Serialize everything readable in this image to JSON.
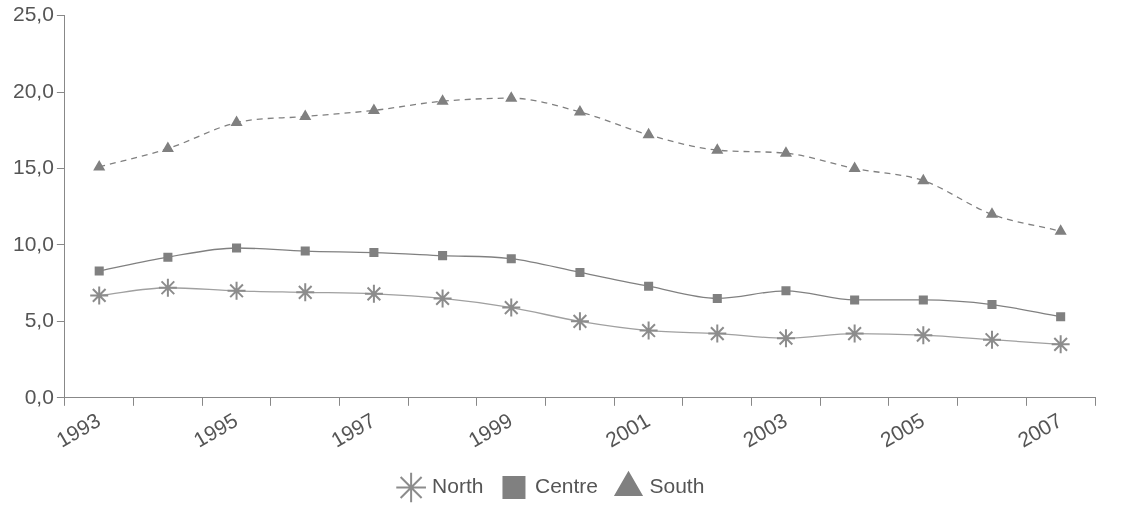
{
  "chart_data": {
    "type": "line",
    "categories": [
      "1993",
      null,
      "1995",
      null,
      "1997",
      null,
      "1999",
      null,
      "2001",
      null,
      "2003",
      null,
      "2005",
      null,
      "2007"
    ],
    "series": [
      {
        "name": "North",
        "color": "#a0a0a0",
        "marker": "cross",
        "line_style": "solid",
        "values": [
          6.7,
          7.2,
          7.0,
          6.9,
          6.8,
          6.5,
          5.9,
          5.0,
          4.4,
          4.2,
          3.9,
          4.2,
          4.1,
          3.8,
          3.5
        ]
      },
      {
        "name": "Centre",
        "color": "#808080",
        "marker": "square",
        "line_style": "solid",
        "values": [
          8.3,
          9.2,
          9.8,
          9.6,
          9.5,
          9.3,
          9.1,
          8.2,
          7.3,
          6.5,
          7.0,
          6.4,
          6.4,
          6.1,
          5.3
        ]
      },
      {
        "name": "South",
        "color": "#808080",
        "marker": "triangle",
        "line_style": "dashed",
        "values": [
          15.1,
          16.3,
          18.0,
          18.4,
          18.8,
          19.4,
          19.6,
          18.7,
          17.2,
          16.2,
          16.0,
          15.0,
          14.2,
          12.0,
          10.9
        ]
      }
    ],
    "ylim": [
      0,
      25
    ],
    "yticks": [
      {
        "value": 0,
        "label": "0,0"
      },
      {
        "value": 5,
        "label": "5,0"
      },
      {
        "value": 10,
        "label": "10,0"
      },
      {
        "value": 15,
        "label": "15,0"
      },
      {
        "value": 20,
        "label": "20,0"
      },
      {
        "value": 25,
        "label": "25,0"
      }
    ],
    "grid": false,
    "legend": "bottom"
  }
}
